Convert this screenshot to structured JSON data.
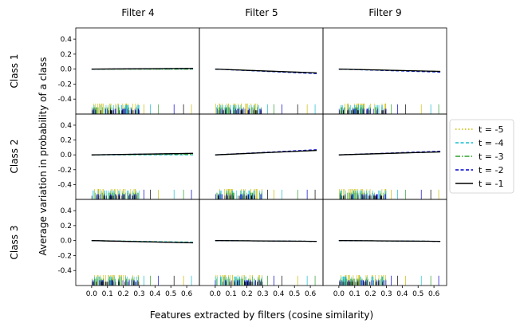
{
  "chart_data": {
    "type": "line",
    "layout": "grid-3x3",
    "column_titles": [
      "Filter 4",
      "Filter 5",
      "Filter 9"
    ],
    "row_titles": [
      "Class 1",
      "Class 2",
      "Class 3"
    ],
    "xlabel": "Features extracted by filters (cosine similarity)",
    "ylabel": "Average variation in probability of a class",
    "xlim": [
      -0.1,
      0.68
    ],
    "ylim": [
      -0.6,
      0.55
    ],
    "xticks": [
      0.0,
      0.1,
      0.2,
      0.3,
      0.4,
      0.5,
      0.6
    ],
    "xtick_labels": [
      "0.0",
      "0.1",
      "0.2",
      "0.3",
      "0.4",
      "0.5",
      "0.6"
    ],
    "yticks": [
      -0.4,
      -0.2,
      0.0,
      0.2,
      0.4
    ],
    "ytick_labels": [
      "-0.4",
      "-0.2",
      "0.0",
      "0.2",
      "0.4"
    ],
    "legend_position": "right",
    "series": [
      {
        "name": "t = -5",
        "color": "#ccbb00",
        "dash": "dotted"
      },
      {
        "name": "t = -4",
        "color": "#17becf",
        "dash": "dashed"
      },
      {
        "name": "t = -3",
        "color": "#2ca02c",
        "dash": "dashdot"
      },
      {
        "name": "t = -2",
        "color": "#0000cc",
        "dash": "dashed"
      },
      {
        "name": "t = -1",
        "color": "#000000",
        "dash": "solid"
      }
    ],
    "x_range": [
      0.0,
      0.64
    ],
    "panels": [
      {
        "row": 0,
        "col": 0,
        "y_start": 0.0,
        "y_end": [
          0.0,
          0.0,
          0.0,
          0.01,
          0.01
        ]
      },
      {
        "row": 0,
        "col": 1,
        "y_start": 0.0,
        "y_end": [
          -0.05,
          -0.06,
          -0.05,
          -0.06,
          -0.05
        ]
      },
      {
        "row": 0,
        "col": 2,
        "y_start": 0.0,
        "y_end": [
          -0.03,
          -0.04,
          -0.03,
          -0.04,
          -0.03
        ]
      },
      {
        "row": 1,
        "col": 0,
        "y_start": 0.0,
        "y_end": [
          0.01,
          0.0,
          0.01,
          0.02,
          0.02
        ]
      },
      {
        "row": 1,
        "col": 1,
        "y_start": 0.0,
        "y_end": [
          0.06,
          0.06,
          0.06,
          0.07,
          0.06
        ]
      },
      {
        "row": 1,
        "col": 2,
        "y_start": 0.0,
        "y_end": [
          0.04,
          0.04,
          0.04,
          0.05,
          0.04
        ]
      },
      {
        "row": 2,
        "col": 0,
        "y_start": 0.0,
        "y_end": [
          -0.02,
          -0.02,
          -0.03,
          -0.03,
          -0.03
        ]
      },
      {
        "row": 2,
        "col": 1,
        "y_start": 0.0,
        "y_end": [
          -0.01,
          -0.01,
          -0.01,
          -0.01,
          -0.01
        ]
      },
      {
        "row": 2,
        "col": 2,
        "y_start": 0.0,
        "y_end": [
          -0.01,
          -0.01,
          -0.01,
          -0.01,
          -0.01
        ]
      }
    ],
    "rug_dense_range": [
      0.0,
      0.3
    ],
    "rug_sparse_values": [
      0.33,
      0.37,
      0.42,
      0.52,
      0.58,
      0.63
    ]
  }
}
